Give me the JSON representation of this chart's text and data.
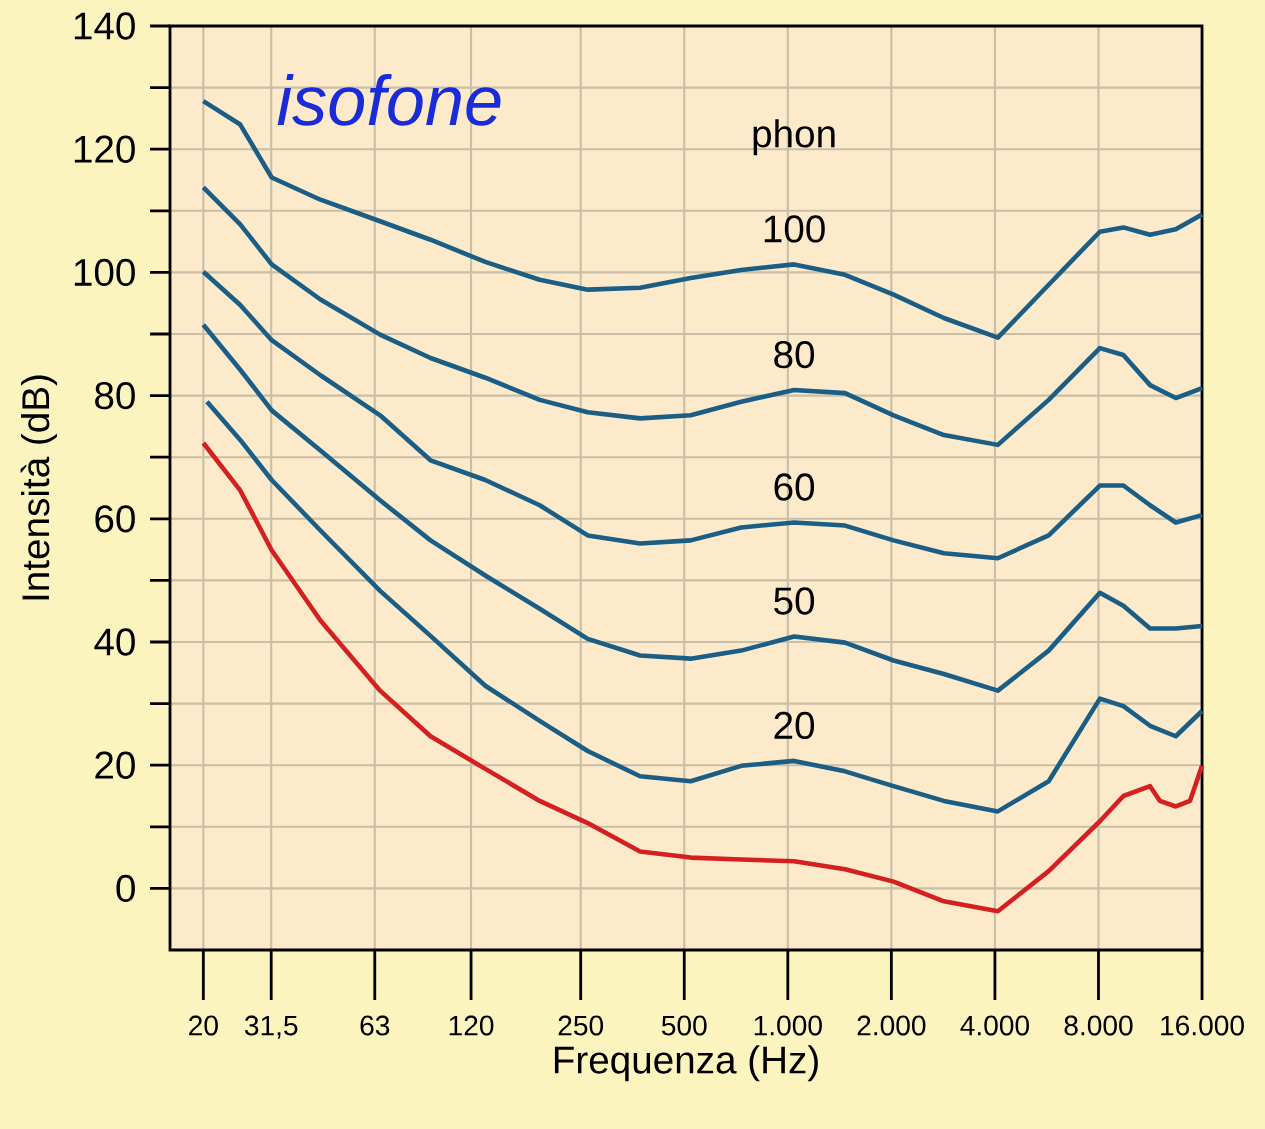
{
  "chart_data": {
    "type": "line",
    "xlabel": "Frequenza (Hz)",
    "ylabel": "Intensità (dB)",
    "log": "x",
    "grid": true,
    "xlim": [
      16,
      16000
    ],
    "ylim": [
      -10,
      140
    ],
    "xticks": [
      20,
      {
        "value": 31.5,
        "label": "31,5"
      },
      63,
      120,
      250,
      500,
      {
        "value": 1000,
        "label": "1.000"
      },
      {
        "value": 2000,
        "label": "2.000"
      },
      {
        "value": 4000,
        "label": "4.000"
      },
      {
        "value": 8000,
        "label": "8.000"
      },
      {
        "value": 16000,
        "label": "16.000"
      }
    ],
    "yticks": [
      0,
      {
        "value": 10,
        "label": null
      },
      20,
      {
        "value": 30,
        "label": null
      },
      40,
      {
        "value": 50,
        "label": null
      },
      60,
      {
        "value": 70,
        "label": null
      },
      80,
      {
        "value": 90,
        "label": null
      },
      100,
      {
        "value": 110,
        "label": null
      },
      120,
      {
        "value": 130,
        "label": null
      },
      140
    ],
    "annotations": [
      "isofone",
      "phon"
    ],
    "series": [
      {
        "name": "100",
        "color": "#1a5e86",
        "x": [
          20,
          25.6,
          31.6,
          43.8,
          65.3,
          91.5,
          132,
          190,
          262,
          372,
          522,
          732,
          1043,
          1467,
          2030,
          2842,
          4079,
          5733,
          8075,
          9450,
          11300,
          13420,
          16000
        ],
        "values": [
          127.8,
          124,
          115.4,
          111.8,
          108.3,
          105.3,
          101.7,
          98.8,
          97.2,
          97.5,
          99.1,
          100.4,
          101.3,
          99.6,
          96.4,
          92.6,
          89.4,
          98,
          106.6,
          107.3,
          106.1,
          107,
          109.4
        ]
      },
      {
        "name": "80",
        "color": "#1a5e86",
        "x": [
          20,
          25.6,
          31.6,
          43.8,
          65.3,
          91.5,
          132,
          190,
          262,
          372,
          522,
          732,
          1043,
          1467,
          2030,
          2842,
          4079,
          5733,
          8075,
          9450,
          11300,
          13420,
          16000
        ],
        "values": [
          113.8,
          107.8,
          101.3,
          95.6,
          89.9,
          86.1,
          82.9,
          79.3,
          77.3,
          76.3,
          76.8,
          79,
          80.9,
          80.4,
          76.8,
          73.6,
          72,
          79.3,
          87.7,
          86.6,
          81.7,
          79.6,
          81.2
        ]
      },
      {
        "name": "60",
        "color": "#1a5e86",
        "x": [
          20,
          25.6,
          31.6,
          43.8,
          65.3,
          91.5,
          132,
          190,
          262,
          372,
          522,
          732,
          1043,
          1467,
          2030,
          2842,
          4079,
          5733,
          8075,
          9450,
          11300,
          13420,
          16000
        ],
        "values": [
          100.1,
          94.7,
          89,
          83.3,
          76.8,
          69.5,
          66.3,
          62.2,
          57.3,
          56,
          56.5,
          58.6,
          59.4,
          58.9,
          56.5,
          54.4,
          53.6,
          57.3,
          65.4,
          65.4,
          62.2,
          59.4,
          60.6
        ]
      },
      {
        "name": "50",
        "color": "#1a5e86",
        "x": [
          20,
          25.6,
          31.6,
          43.8,
          65.3,
          91.5,
          132,
          190,
          262,
          372,
          522,
          732,
          1043,
          1467,
          2030,
          2842,
          4079,
          5733,
          8075,
          9450,
          11300,
          13420,
          16000
        ],
        "values": [
          91.5,
          84.2,
          77.6,
          71.1,
          63,
          56.5,
          50.8,
          45.4,
          40.5,
          37.8,
          37.3,
          38.6,
          40.9,
          39.9,
          37,
          34.8,
          32.1,
          38.6,
          48,
          45.9,
          42.2,
          42.2,
          42.6
        ]
      },
      {
        "name": "20",
        "color": "#1a5e86",
        "x": [
          20.5,
          25.6,
          31.6,
          43.8,
          65.3,
          91.5,
          132,
          190,
          262,
          372,
          522,
          732,
          1043,
          1467,
          2030,
          2842,
          4079,
          5733,
          8075,
          9450,
          11300,
          13420,
          16000
        ],
        "values": [
          79,
          72.8,
          66.3,
          58.1,
          48.3,
          41,
          32.9,
          27.2,
          22.3,
          18.2,
          17.4,
          19.9,
          20.7,
          19,
          16.6,
          14.2,
          12.5,
          17.4,
          30.8,
          29.6,
          26.4,
          24.7,
          28.8
        ]
      },
      {
        "color": "#d42020",
        "x": [
          20,
          25.6,
          31.6,
          43.8,
          65.3,
          91.5,
          132,
          190,
          262,
          372,
          522,
          732,
          1043,
          1467,
          2030,
          2842,
          4079,
          5733,
          8075,
          9450,
          11300,
          12070,
          13420,
          14760,
          16000
        ],
        "values": [
          72.3,
          64.6,
          54.9,
          43.5,
          32.1,
          24.7,
          19.4,
          14.2,
          10.6,
          6,
          5,
          4.7,
          4.4,
          3.1,
          1.1,
          -2.1,
          -3.7,
          2.8,
          10.9,
          15,
          16.6,
          14.2,
          13.3,
          14.2,
          19.9
        ]
      }
    ]
  }
}
